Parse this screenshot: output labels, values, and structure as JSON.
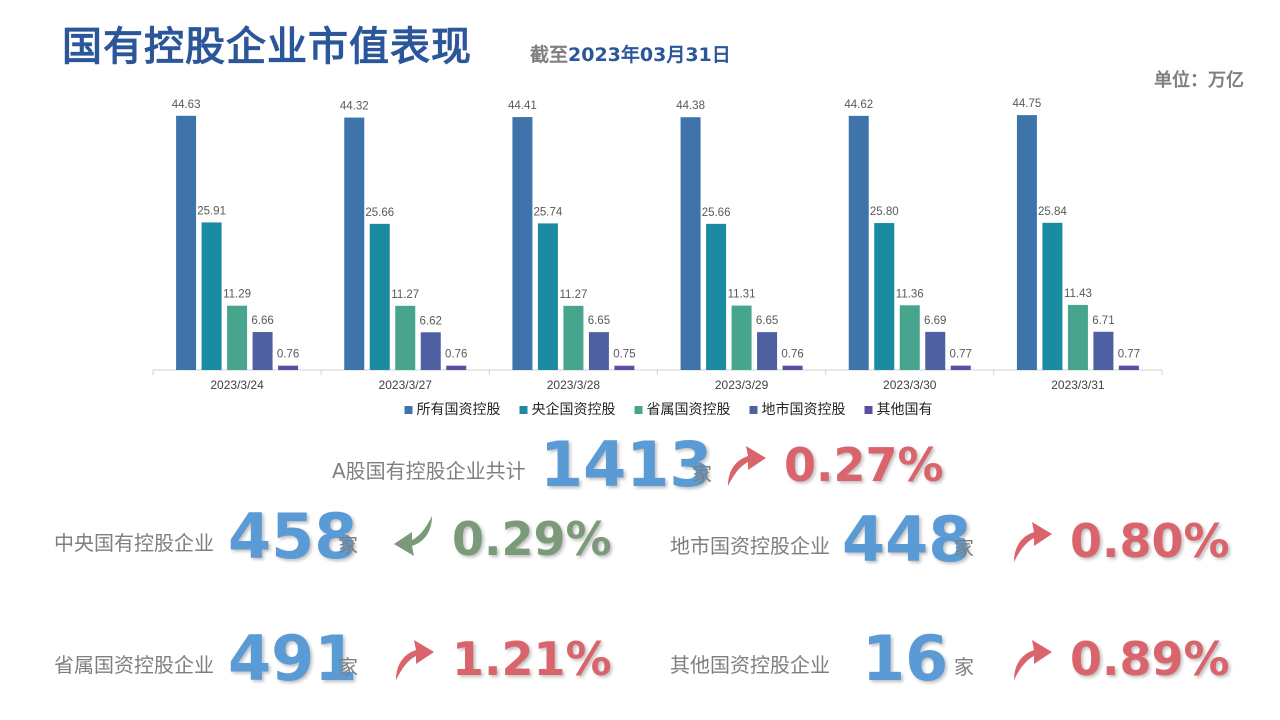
{
  "header": {
    "title": "国有控股企业市值表现",
    "subtitle_prefix": "截至",
    "subtitle_date": "2023年03月31日",
    "unit": "单位：万亿"
  },
  "colors": {
    "series": [
      "#3e74aa",
      "#1a8ba0",
      "#47a58e",
      "#4e5fa2",
      "#5b4fa3"
    ],
    "up": "#d9646c",
    "down": "#7a9a7a",
    "number": "#5b9bd5"
  },
  "chart_data": {
    "type": "bar",
    "categories": [
      "2023/3/24",
      "2023/3/27",
      "2023/3/28",
      "2023/3/29",
      "2023/3/30",
      "2023/3/31"
    ],
    "series": [
      {
        "name": "所有国资控股",
        "values": [
          44.63,
          44.32,
          44.41,
          44.38,
          44.62,
          44.75
        ]
      },
      {
        "name": "央企国资控股",
        "values": [
          25.91,
          25.66,
          25.74,
          25.66,
          25.8,
          25.84
        ]
      },
      {
        "name": "省属国资控股",
        "values": [
          11.29,
          11.27,
          11.27,
          11.31,
          11.36,
          11.43
        ]
      },
      {
        "name": "地市国资控股",
        "values": [
          6.66,
          6.62,
          6.65,
          6.65,
          6.69,
          6.71
        ]
      },
      {
        "name": "其他国有",
        "values": [
          0.76,
          0.76,
          0.75,
          0.76,
          0.77,
          0.77
        ]
      }
    ],
    "ylim": [
      0,
      46
    ],
    "legend": "bottom",
    "grid": false
  },
  "stats": {
    "total": {
      "label": "A股国有控股企业共计",
      "count": "1413",
      "unit": "家",
      "change": "0.27%",
      "direction": "up"
    },
    "central": {
      "label": "中央国有控股企业",
      "count": "458",
      "unit": "家",
      "change": "0.29%",
      "direction": "down"
    },
    "municipal": {
      "label": "地市国资控股企业",
      "count": "448",
      "unit": "家",
      "change": "0.80%",
      "direction": "up"
    },
    "provincial": {
      "label": "省属国资控股企业",
      "count": "491",
      "unit": "家",
      "change": "1.21%",
      "direction": "up"
    },
    "other": {
      "label": "其他国资控股企业",
      "count": "16",
      "unit": "家",
      "change": "0.89%",
      "direction": "up"
    }
  }
}
